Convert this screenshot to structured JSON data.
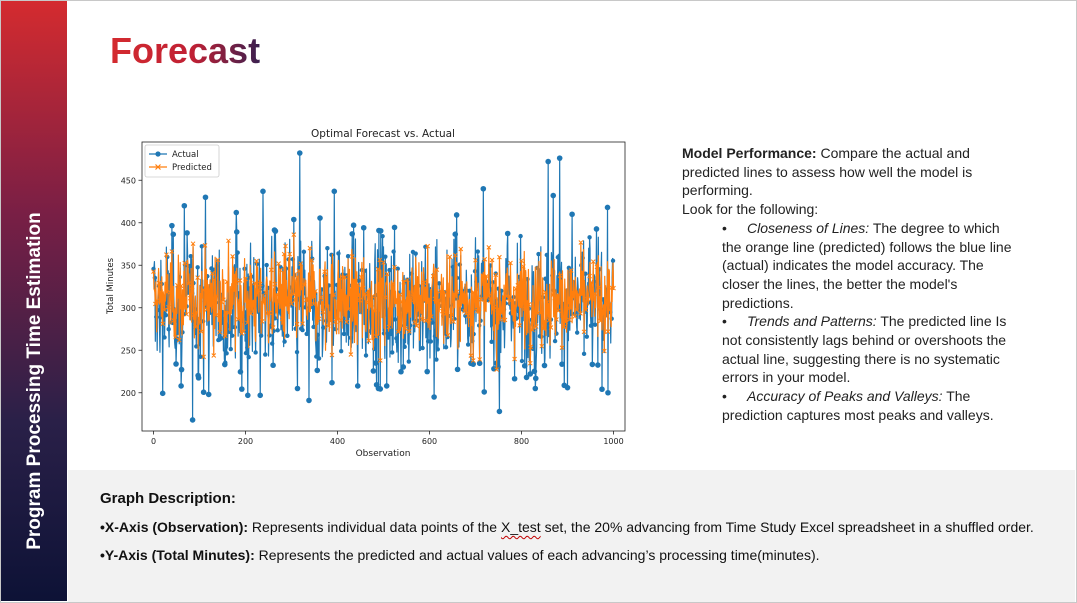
{
  "sidebar": {
    "title": "Program Processing Time Estimation"
  },
  "slide": {
    "title": "Forecast"
  },
  "chart_data": {
    "type": "line",
    "title": "Optimal Forecast vs. Actual",
    "xlabel": "Observation",
    "ylabel": "Total Minutes",
    "xlim": [
      -25,
      1025
    ],
    "ylim": [
      155,
      495
    ],
    "x_ticks": [
      0,
      200,
      400,
      600,
      800,
      1000
    ],
    "y_ticks": [
      200,
      250,
      300,
      350,
      400,
      450
    ],
    "grid": false,
    "legend_position": "top-left",
    "n_points": 1001,
    "series": [
      {
        "name": "Actual",
        "color": "#1f77b4",
        "marker": "circle",
        "typical_range": [
          250,
          360
        ],
        "min": 168,
        "max": 482,
        "peaks": [
          [
            67,
            420
          ],
          [
            113,
            430
          ],
          [
            180,
            412
          ],
          [
            238,
            437
          ],
          [
            318,
            482
          ],
          [
            393,
            437
          ],
          [
            717,
            440
          ],
          [
            858,
            472
          ],
          [
            869,
            432
          ],
          [
            883,
            476
          ],
          [
            910,
            410
          ]
        ],
        "troughs": [
          [
            60,
            208
          ],
          [
            85,
            168
          ],
          [
            120,
            198
          ],
          [
            205,
            197
          ],
          [
            232,
            197
          ],
          [
            313,
            205
          ],
          [
            338,
            191
          ],
          [
            444,
            208
          ],
          [
            507,
            208
          ],
          [
            610,
            195
          ],
          [
            719,
            201
          ],
          [
            752,
            178
          ],
          [
            830,
            205
          ],
          [
            988,
            200
          ]
        ]
      },
      {
        "name": "Predicted",
        "color": "#ff7f0e",
        "marker": "x",
        "typical_range": [
          260,
          360
        ],
        "min": 210,
        "max": 400
      }
    ]
  },
  "notes": {
    "perf_label": "Model Performance:",
    "perf_text": " Compare the actual and predicted lines to assess how well the model is performing.",
    "look_for": "Look for the following:",
    "bullet_char": "•",
    "bullets": [
      {
        "label": "Closeness of Lines:",
        "text": " The degree to which the orange line (predicted) follows the blue line (actual) indicates the model accuracy. The closer the lines, the better the model's predictions."
      },
      {
        "label": "Trends and Patterns:",
        "text": " The predicted line Is not consistently lags behind or overshoots the actual line, suggesting there is no systematic errors in your model."
      },
      {
        "label": "Accuracy of Peaks and Valleys:",
        "text": " The prediction captures most peaks and valleys."
      }
    ]
  },
  "description": {
    "heading": "Graph Description:",
    "x_label": "•X-Axis (Observation):",
    "x_text_pre": " Represents individual data points of the ",
    "x_text_squiggle": "X_test",
    "x_text_post": " set, the 20% advancing from Time Study Excel spreadsheet in a shuffled order.",
    "y_label": "•Y-Axis (Total Minutes):",
    "y_text": " Represents the predicted and actual values of each advancing’s processing time(minutes)."
  }
}
